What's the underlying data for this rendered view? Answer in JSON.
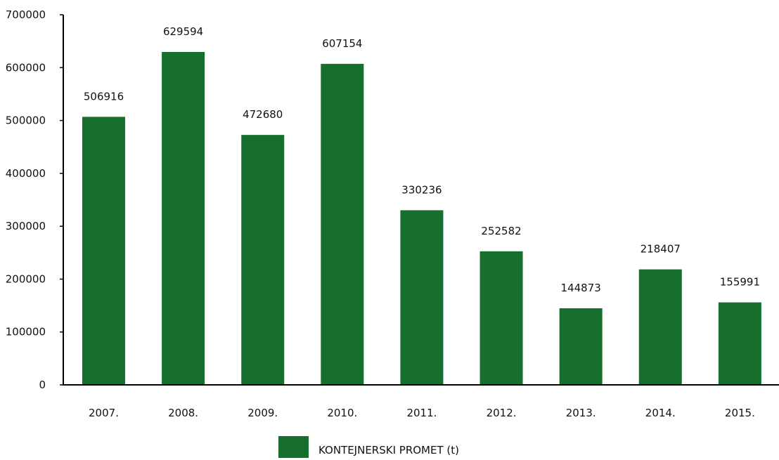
{
  "chart_data": {
    "type": "bar",
    "categories": [
      "2007.",
      "2008.",
      "2009.",
      "2010.",
      "2011.",
      "2012.",
      "2013.",
      "2014.",
      "2015."
    ],
    "series": [
      {
        "name": "KONTEJNERSKI PROMET (t)",
        "values": [
          506916,
          629594,
          472680,
          607154,
          330236,
          252582,
          144873,
          218407,
          155991
        ],
        "color": "#166f2c"
      }
    ],
    "ylim": [
      0,
      700000
    ],
    "yticks": [
      0,
      100000,
      200000,
      300000,
      400000,
      500000,
      600000,
      700000
    ],
    "grid": false,
    "legend": "bottom-center",
    "data_labels": true
  }
}
